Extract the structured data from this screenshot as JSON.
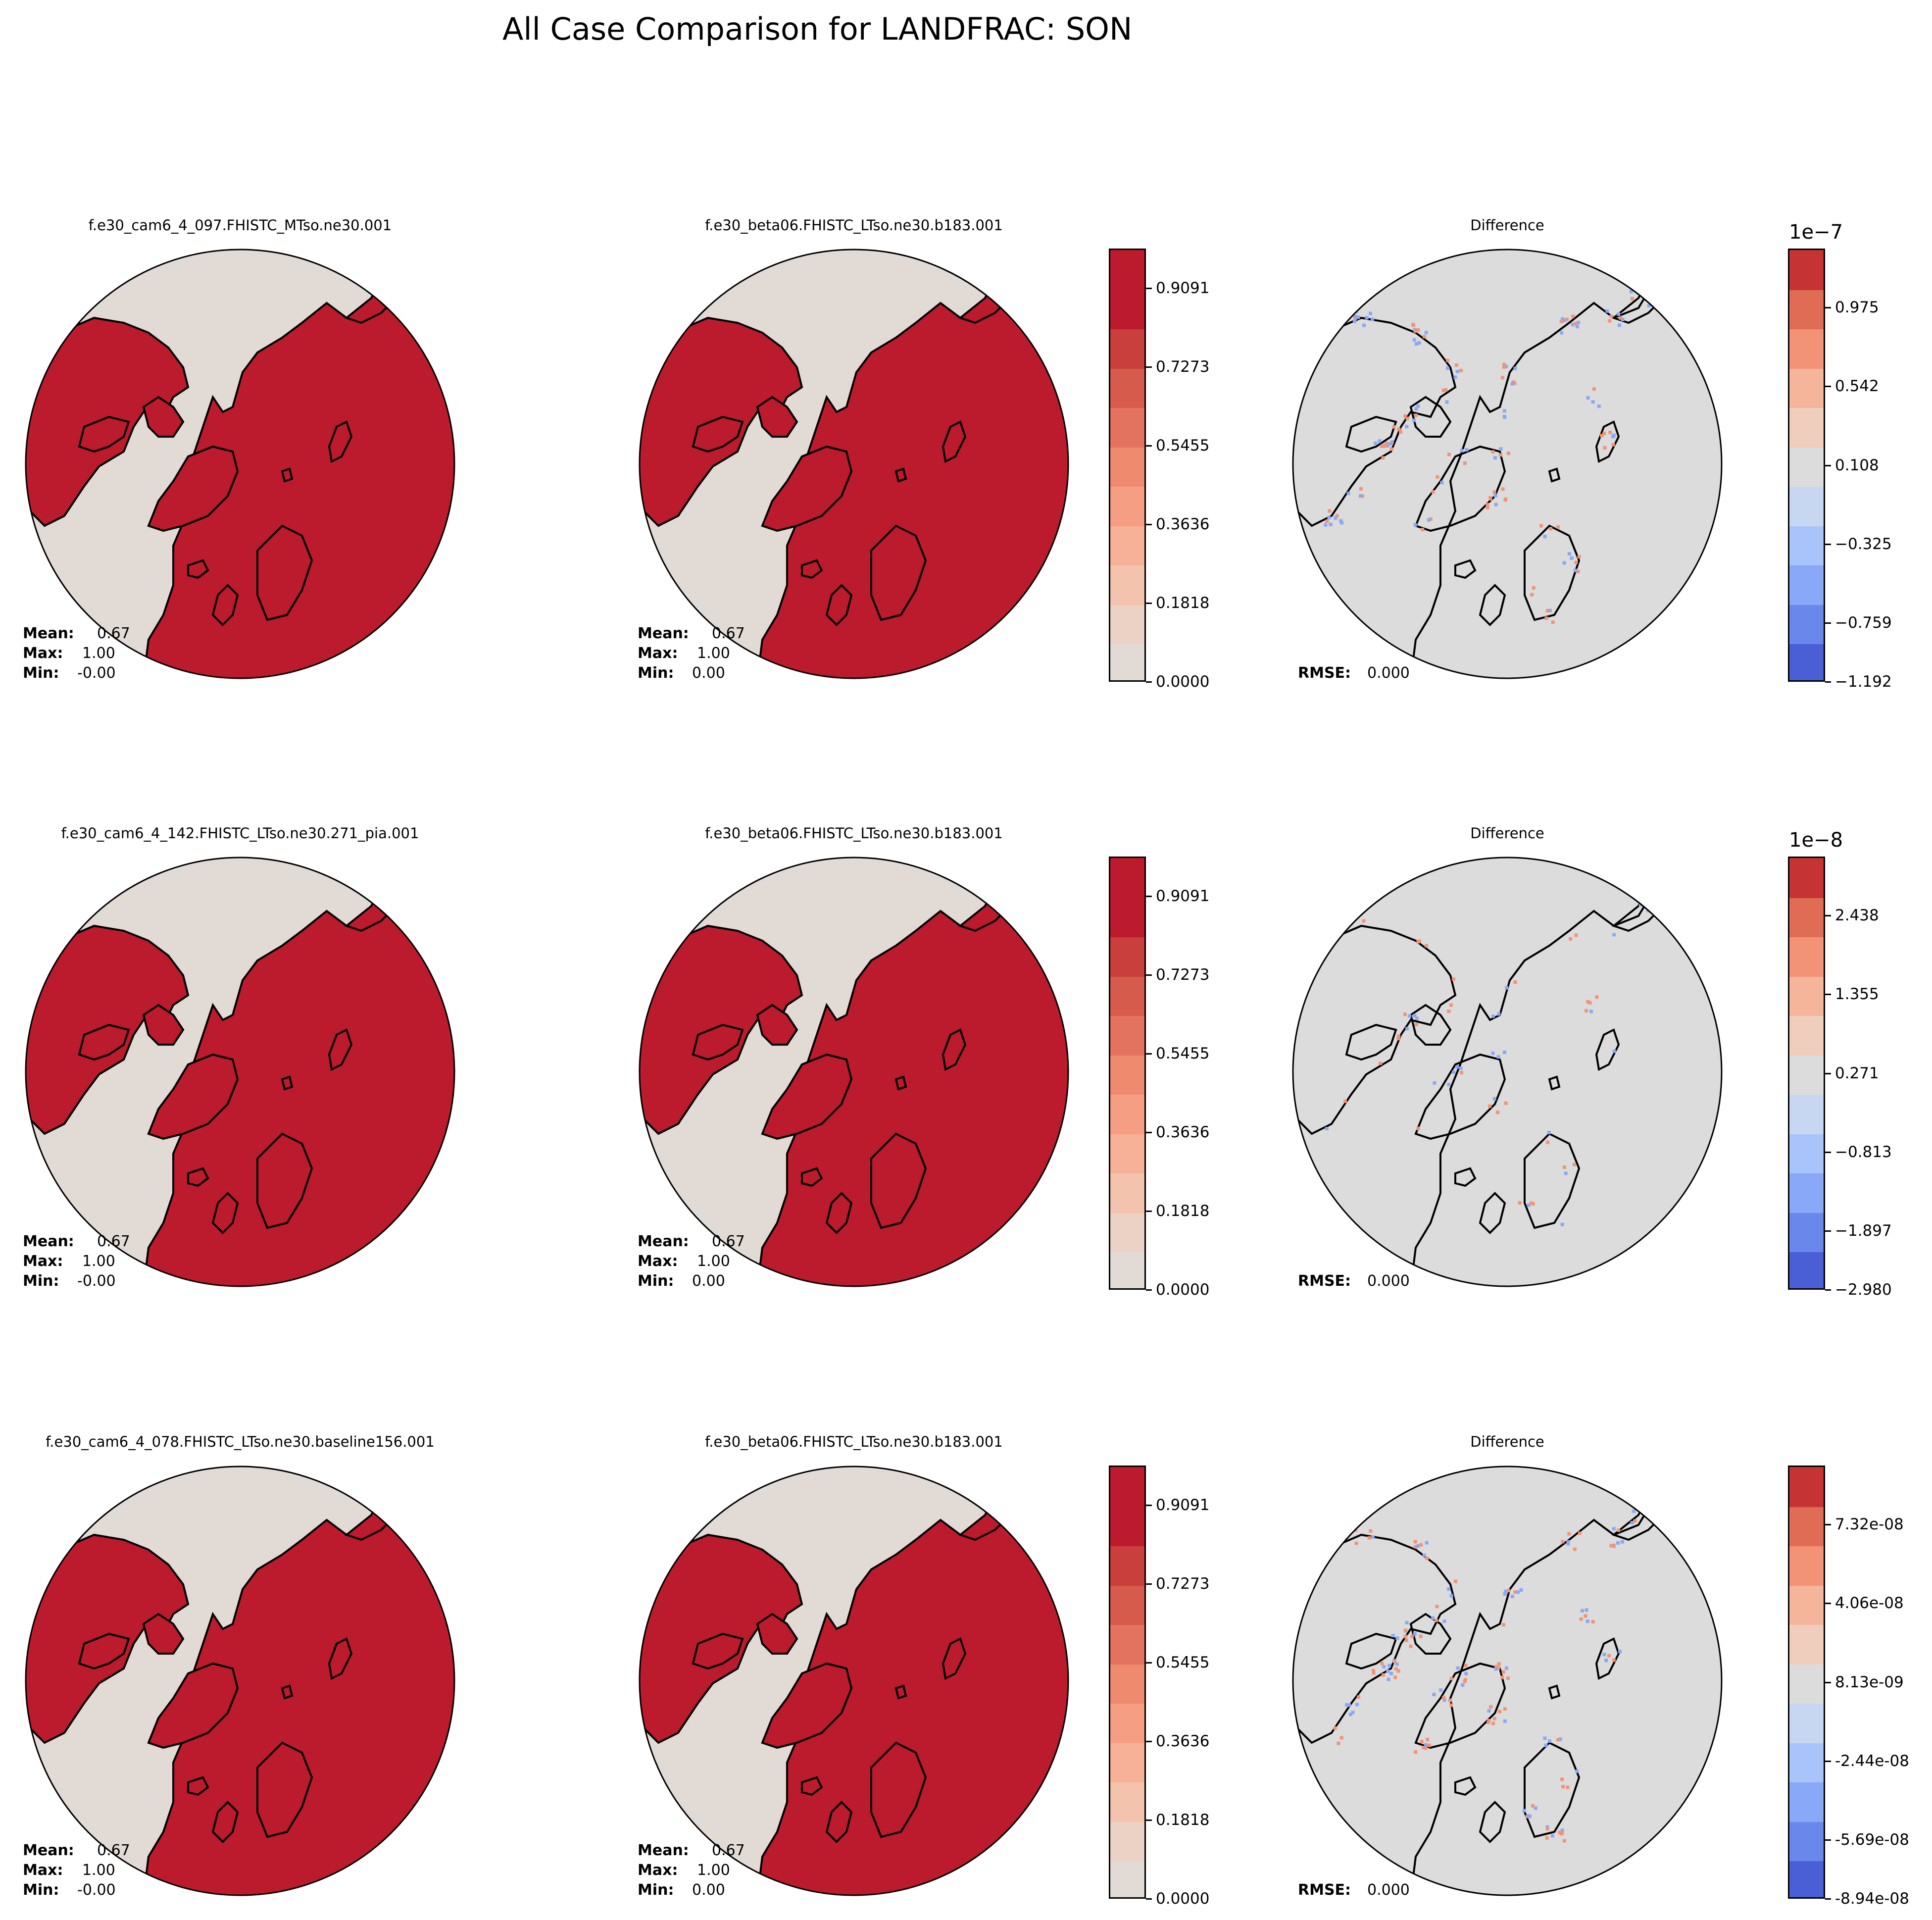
{
  "figure": {
    "title": "All Case Comparison for LANDFRAC: SON"
  },
  "colors": {
    "land": "#bb1b2c",
    "ocean": "#e2dbd5",
    "diff_background": "#dcdcdc",
    "coast": "#000000"
  },
  "rows": [
    {
      "test_title": "f.e30_cam6_4_097.FHISTC_MTso.ne30.001",
      "ref_title": "f.e30_beta06.FHISTC_LTso.ne30.b183.001",
      "diff_title": "Difference",
      "test_stats": {
        "mean_label": "Mean:",
        "mean": "0.67",
        "max_label": "Max:",
        "max": "1.00",
        "min_label": "Min:",
        "min": "-0.00"
      },
      "ref_stats": {
        "mean_label": "Mean:",
        "mean": "0.67",
        "max_label": "Max:",
        "max": "1.00",
        "min_label": "Min:",
        "min": "0.00"
      },
      "diff_stats": {
        "rmse_label": "RMSE:",
        "rmse": "0.000"
      },
      "diff_cbar": {
        "scale": "1e−7",
        "ticks": [
          "0.975",
          "0.542",
          "0.108",
          "−0.325",
          "−0.759",
          "−1.192"
        ]
      }
    },
    {
      "test_title": "f.e30_cam6_4_142.FHISTC_LTso.ne30.271_pia.001",
      "ref_title": "f.e30_beta06.FHISTC_LTso.ne30.b183.001",
      "diff_title": "Difference",
      "test_stats": {
        "mean_label": "Mean:",
        "mean": "0.67",
        "max_label": "Max:",
        "max": "1.00",
        "min_label": "Min:",
        "min": "-0.00"
      },
      "ref_stats": {
        "mean_label": "Mean:",
        "mean": "0.67",
        "max_label": "Max:",
        "max": "1.00",
        "min_label": "Min:",
        "min": "0.00"
      },
      "diff_stats": {
        "rmse_label": "RMSE:",
        "rmse": "0.000"
      },
      "diff_cbar": {
        "scale": "1e−8",
        "ticks": [
          "2.438",
          "1.355",
          "0.271",
          "−0.813",
          "−1.897",
          "−2.980"
        ]
      }
    },
    {
      "test_title": "f.e30_cam6_4_078.FHISTC_LTso.ne30.baseline156.001",
      "ref_title": "f.e30_beta06.FHISTC_LTso.ne30.b183.001",
      "diff_title": "Difference",
      "test_stats": {
        "mean_label": "Mean:",
        "mean": "0.67",
        "max_label": "Max:",
        "max": "1.00",
        "min_label": "Min:",
        "min": "-0.00"
      },
      "ref_stats": {
        "mean_label": "Mean:",
        "mean": "0.67",
        "max_label": "Max:",
        "max": "1.00",
        "min_label": "Min:",
        "min": "0.00"
      },
      "diff_stats": {
        "rmse_label": "RMSE:",
        "rmse": "0.000"
      },
      "diff_cbar": {
        "scale": "",
        "ticks": [
          "7.32e-08",
          "4.06e-08",
          "8.13e-09",
          "-2.44e-08",
          "-5.69e-08",
          "-8.94e-08"
        ]
      }
    }
  ],
  "ref_cbar": {
    "ticks": [
      "0.9091",
      "0.7273",
      "0.5455",
      "0.3636",
      "0.1818",
      "0.0000"
    ],
    "levels": [
      "#e2dbd5",
      "#ecd1c5",
      "#f3c3ad",
      "#f6b197",
      "#f59e83",
      "#ef8a6f",
      "#e3735e",
      "#d65b4d",
      "#c83f3c",
      "#bb1b2c"
    ]
  },
  "diff_levels": [
    "#4a5fd6",
    "#6a88ec",
    "#89a8f7",
    "#a9c3fb",
    "#c7d7f1",
    "#dcdcdc",
    "#f0cdbd",
    "#f5b59b",
    "#f29377",
    "#e16c56",
    "#c63334"
  ]
}
